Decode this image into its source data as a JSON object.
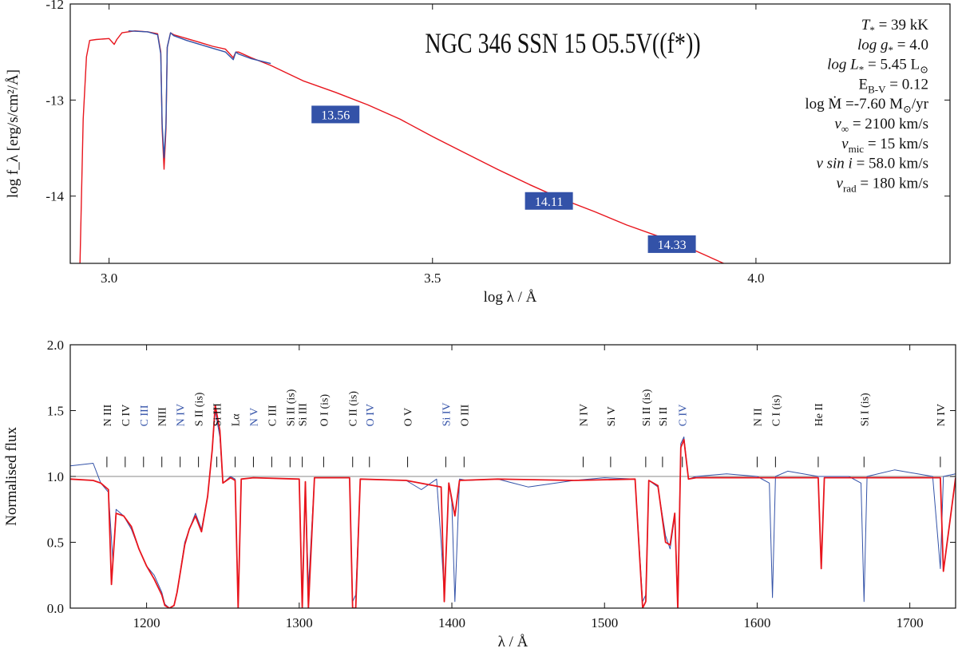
{
  "colors": {
    "model": "#e8151d",
    "observed": "#3352a8",
    "label_box": "#3352a8",
    "axis": "#111111",
    "ref_line": "#888888"
  },
  "chart_data": [
    {
      "type": "line",
      "title": "NGC 346 SSN 15 O5.5V((f*))",
      "xlabel": "log λ / Å",
      "ylabel": "log f_λ [erg/s/cm²/Å]",
      "xlim": [
        2.94,
        4.3
      ],
      "ylim": [
        -14.7,
        -12.0
      ],
      "x_ticks": [
        3.0,
        3.5,
        4.0
      ],
      "x_tick_labels": [
        "3.0",
        "3.5",
        "4.0"
      ],
      "y_ticks": [
        -12,
        -13,
        -14
      ],
      "y_tick_labels": [
        "-12",
        "-13",
        "-14"
      ],
      "grid": false,
      "series": [
        {
          "color": "#e8151d",
          "x": [
            2.955,
            2.96,
            2.965,
            2.97,
            2.98,
            3.0,
            3.008,
            3.012,
            3.02,
            3.04,
            3.06,
            3.075,
            3.08,
            3.082,
            3.085,
            3.088,
            3.09,
            3.095,
            3.1,
            3.12,
            3.14,
            3.16,
            3.18,
            3.192,
            3.196,
            3.2,
            3.22,
            3.25,
            3.3,
            3.35,
            3.4,
            3.45,
            3.5,
            3.55,
            3.6,
            3.65,
            3.7,
            3.75,
            3.8,
            3.85,
            3.9,
            3.95
          ],
          "y": [
            -14.7,
            -13.2,
            -12.55,
            -12.38,
            -12.37,
            -12.36,
            -12.42,
            -12.37,
            -12.3,
            -12.28,
            -12.29,
            -12.31,
            -12.5,
            -13.3,
            -13.72,
            -13.3,
            -12.45,
            -12.3,
            -12.32,
            -12.36,
            -12.4,
            -12.44,
            -12.47,
            -12.56,
            -12.5,
            -12.5,
            -12.56,
            -12.64,
            -12.8,
            -12.92,
            -13.05,
            -13.2,
            -13.38,
            -13.55,
            -13.72,
            -13.88,
            -14.03,
            -14.16,
            -14.3,
            -14.42,
            -14.55,
            -14.7
          ]
        },
        {
          "color": "#3352a8",
          "x": [
            3.03,
            3.06,
            3.075,
            3.08,
            3.082,
            3.085,
            3.088,
            3.09,
            3.095,
            3.1,
            3.12,
            3.14,
            3.16,
            3.18,
            3.192,
            3.196,
            3.2,
            3.22,
            3.25
          ],
          "y": [
            -12.28,
            -12.29,
            -12.32,
            -12.52,
            -13.25,
            -13.6,
            -13.25,
            -12.45,
            -12.3,
            -12.33,
            -12.38,
            -12.42,
            -12.46,
            -12.5,
            -12.58,
            -12.5,
            -12.52,
            -12.57,
            -12.62
          ]
        }
      ],
      "annotations": [
        {
          "text": "13.56",
          "x": 3.35,
          "y": -13.15
        },
        {
          "text": "14.11",
          "x": 3.68,
          "y": -14.05
        },
        {
          "text": "14.33",
          "x": 3.87,
          "y": -14.5
        }
      ],
      "params": [
        {
          "name": "T",
          "sub": "*",
          "rest": " = 39 kK"
        },
        {
          "name": "log g",
          "sub": "*",
          "rest": " =  4.0"
        },
        {
          "name": "log L",
          "sub": "*",
          "rest": " = 5.45 L",
          "sun": true
        },
        {
          "name": "E",
          "sub": "B-V",
          "rest": " = 0.12"
        },
        {
          "name": "log Ṁ",
          "sub": "",
          "rest": "  =-7.60 M",
          "sun": true,
          "suffix": "/yr"
        },
        {
          "name": "v",
          "sub": "∞",
          "rest": " = 2100 km/s"
        },
        {
          "name": "v",
          "sub": "mic",
          "rest": " = 15 km/s"
        },
        {
          "name": "v sin i",
          "sub": "",
          "rest": " = 58.0 km/s"
        },
        {
          "name": "v",
          "sub": "rad",
          "rest": " = 180 km/s"
        }
      ]
    },
    {
      "type": "line",
      "title": "",
      "xlabel": "λ / Å",
      "ylabel": "Normalised flux",
      "xlim": [
        1150,
        1730
      ],
      "ylim": [
        0.0,
        2.0
      ],
      "x_ticks": [
        1200,
        1300,
        1400,
        1500,
        1600,
        1700
      ],
      "x_tick_labels": [
        "1200",
        "1300",
        "1400",
        "1500",
        "1600",
        "1700"
      ],
      "y_ticks": [
        0.0,
        0.5,
        1.0,
        1.5,
        2.0
      ],
      "y_tick_labels": [
        "0.0",
        "0.5",
        "1.0",
        "1.5",
        "2.0"
      ],
      "reference_line": 1.0,
      "grid": false,
      "series": [
        {
          "color": "#3352a8",
          "x": [
            1150,
            1165,
            1170,
            1175,
            1178,
            1180,
            1185,
            1190,
            1195,
            1200,
            1205,
            1210,
            1212,
            1215,
            1218,
            1220,
            1225,
            1228,
            1232,
            1236,
            1240,
            1243,
            1245,
            1248,
            1250,
            1255,
            1258,
            1260,
            1262,
            1270,
            1300,
            1302,
            1304,
            1306,
            1310,
            1333,
            1335,
            1337,
            1340,
            1370,
            1380,
            1390,
            1393,
            1395,
            1398,
            1400,
            1402,
            1405,
            1410,
            1430,
            1450,
            1480,
            1500,
            1520,
            1525,
            1527,
            1529,
            1535,
            1540,
            1543,
            1546,
            1548,
            1550,
            1552,
            1555,
            1560,
            1580,
            1600,
            1608,
            1610,
            1612,
            1620,
            1640,
            1660,
            1668,
            1670,
            1672,
            1690,
            1715,
            1720,
            1722,
            1730
          ],
          "y": [
            1.08,
            1.1,
            0.95,
            0.88,
            0.35,
            0.75,
            0.7,
            0.6,
            0.45,
            0.32,
            0.25,
            0.12,
            0.03,
            0.0,
            0.02,
            0.12,
            0.5,
            0.6,
            0.72,
            0.6,
            0.85,
            1.2,
            1.5,
            1.3,
            0.95,
            1.0,
            0.98,
            0.05,
            0.98,
            0.99,
            0.98,
            0.1,
            0.96,
            0.15,
            0.99,
            0.99,
            0.05,
            0.1,
            0.98,
            0.97,
            0.9,
            0.98,
            0.5,
            0.1,
            0.95,
            0.8,
            0.05,
            0.98,
            0.97,
            0.98,
            0.92,
            0.97,
            0.99,
            0.98,
            0.05,
            0.1,
            0.97,
            0.92,
            0.55,
            0.45,
            0.7,
            0.1,
            1.25,
            1.3,
            0.98,
            1.0,
            1.02,
            1.0,
            0.95,
            0.08,
            1.0,
            1.04,
            1.0,
            1.0,
            0.95,
            0.05,
            1.0,
            1.05,
            1.0,
            0.3,
            1.0,
            1.02
          ]
        },
        {
          "color": "#e8151d",
          "x": [
            1150,
            1165,
            1170,
            1175,
            1177,
            1180,
            1185,
            1190,
            1195,
            1200,
            1205,
            1210,
            1212,
            1215,
            1218,
            1220,
            1225,
            1228,
            1232,
            1236,
            1240,
            1243,
            1245,
            1248,
            1250,
            1255,
            1258,
            1260,
            1262,
            1270,
            1300,
            1302,
            1304,
            1306,
            1310,
            1333,
            1335,
            1337,
            1340,
            1370,
            1393,
            1395,
            1398,
            1402,
            1405,
            1430,
            1480,
            1520,
            1525,
            1527,
            1529,
            1535,
            1540,
            1543,
            1546,
            1548,
            1550,
            1552,
            1555,
            1560,
            1600,
            1640,
            1642,
            1644,
            1700,
            1720,
            1722,
            1730
          ],
          "y": [
            0.98,
            0.97,
            0.95,
            0.9,
            0.18,
            0.72,
            0.7,
            0.62,
            0.45,
            0.32,
            0.22,
            0.1,
            0.02,
            0.0,
            0.02,
            0.12,
            0.48,
            0.6,
            0.7,
            0.58,
            0.85,
            1.2,
            1.54,
            1.35,
            0.95,
            0.99,
            0.97,
            0.0,
            0.98,
            0.99,
            0.98,
            0.0,
            0.96,
            0.0,
            0.99,
            0.99,
            0.0,
            0.0,
            0.98,
            0.97,
            0.92,
            0.05,
            0.95,
            0.7,
            0.97,
            0.98,
            0.97,
            0.98,
            0.0,
            0.05,
            0.97,
            0.93,
            0.5,
            0.48,
            0.72,
            0.0,
            1.22,
            1.28,
            0.98,
            0.99,
            0.99,
            0.99,
            0.3,
            0.99,
            0.99,
            0.99,
            0.28,
            0.99
          ]
        }
      ],
      "line_ids": [
        {
          "text": "N III",
          "x": 1174,
          "color": "#111111"
        },
        {
          "text": "C IV",
          "x": 1186,
          "color": "#111111"
        },
        {
          "text": "C III",
          "x": 1198,
          "color": "#3352a8"
        },
        {
          "text": "NIII",
          "x": 1210,
          "color": "#111111"
        },
        {
          "text": "N IV",
          "x": 1222,
          "color": "#3352a8"
        },
        {
          "text": "S II (is)",
          "x": 1234,
          "color": "#111111"
        },
        {
          "text": "Si III",
          "x": 1246,
          "color": "#111111"
        },
        {
          "text": "Lα",
          "x": 1258,
          "color": "#111111"
        },
        {
          "text": "N V",
          "x": 1270,
          "color": "#3352a8"
        },
        {
          "text": "C III",
          "x": 1282,
          "color": "#111111"
        },
        {
          "text": "Si II (is)",
          "x": 1294,
          "color": "#111111"
        },
        {
          "text": "Si III",
          "x": 1302,
          "color": "#111111"
        },
        {
          "text": "O I (is)",
          "x": 1316,
          "color": "#111111"
        },
        {
          "text": "C II (is)",
          "x": 1335,
          "color": "#111111"
        },
        {
          "text": "O IV",
          "x": 1346,
          "color": "#3352a8"
        },
        {
          "text": "O V",
          "x": 1371,
          "color": "#111111"
        },
        {
          "text": "Si IV",
          "x": 1396,
          "color": "#3352a8"
        },
        {
          "text": "O III",
          "x": 1408,
          "color": "#111111"
        },
        {
          "text": "N IV",
          "x": 1486,
          "color": "#111111"
        },
        {
          "text": "Si V",
          "x": 1504,
          "color": "#111111"
        },
        {
          "text": "Si II (is)",
          "x": 1527,
          "color": "#111111"
        },
        {
          "text": "Si II",
          "x": 1538,
          "color": "#111111"
        },
        {
          "text": "C IV",
          "x": 1551,
          "color": "#3352a8"
        },
        {
          "text": "N II",
          "x": 1600,
          "color": "#111111"
        },
        {
          "text": "C I (is)",
          "x": 1612,
          "color": "#111111"
        },
        {
          "text": "He II",
          "x": 1640,
          "color": "#111111"
        },
        {
          "text": "Si I (is)",
          "x": 1670,
          "color": "#111111"
        },
        {
          "text": "N IV",
          "x": 1720,
          "color": "#111111"
        }
      ]
    }
  ]
}
